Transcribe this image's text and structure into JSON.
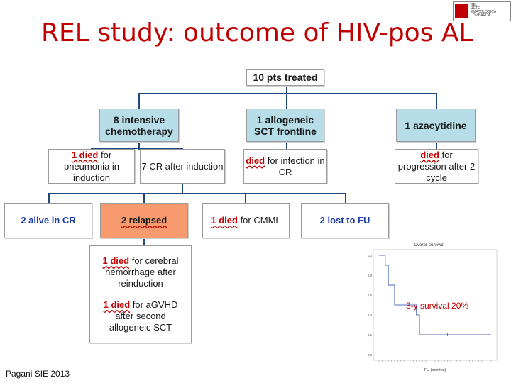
{
  "slide": {
    "title": "REL study: outcome of HIV-pos AL",
    "footer": "Pagani SIE 2013",
    "logo_lines": [
      "REL",
      "RETE",
      "EMATOLOGICA",
      "LOMBARDA"
    ]
  },
  "flow": {
    "root": "10 pts treated",
    "level1": {
      "intensive": "8 intensive chemotherapy",
      "allogeneic": "1 allogeneic SCT frontline",
      "azacytidine": "1 azacytidine"
    },
    "level2": {
      "died_pneumonia": {
        "highlight": "1 died",
        "text": " for pneumonia in induction"
      },
      "cr_after_induction": "7 CR after induction",
      "died_infection": {
        "highlight": "died",
        "text": " for infection in CR"
      },
      "died_progression": {
        "highlight": "died",
        "text": " for progression after 2 cycle"
      }
    },
    "level3": {
      "alive_cr": "2 alive in CR",
      "relapsed": "2 relapsed",
      "died_cmml": {
        "highlight": "1 died",
        "text": " for CMML"
      },
      "lost_fu": "2 lost to FU"
    },
    "level4": {
      "died_hemorrhage": {
        "highlight": "1 died",
        "text": " for cerebral hemorrhage after reinduction"
      },
      "died_agvhd": {
        "highlight": "1 died",
        "text": " for aGVHD after second allogeneic SCT"
      }
    }
  },
  "chart_data": {
    "type": "line",
    "title": "Overall survival",
    "xlabel": "FU (months)",
    "ylabel": "",
    "annotation": "3-y survival 20%",
    "y_ticks": [
      "1,0",
      "0,8",
      "0,6",
      "0,4",
      "0,2",
      "0,0"
    ],
    "ylim": [
      0,
      1
    ],
    "xlim": [
      0,
      72
    ],
    "series_color": "#4f6fbf",
    "steps": [
      {
        "x": 0,
        "y": 1.0
      },
      {
        "x": 4,
        "y": 0.9
      },
      {
        "x": 6,
        "y": 0.7
      },
      {
        "x": 10,
        "y": 0.5
      },
      {
        "x": 24,
        "y": 0.4
      },
      {
        "x": 26,
        "y": 0.2
      },
      {
        "x": 72,
        "y": 0.2
      }
    ],
    "censor_marks": [
      {
        "x": 44,
        "y": 0.2
      },
      {
        "x": 70,
        "y": 0.2
      }
    ]
  }
}
